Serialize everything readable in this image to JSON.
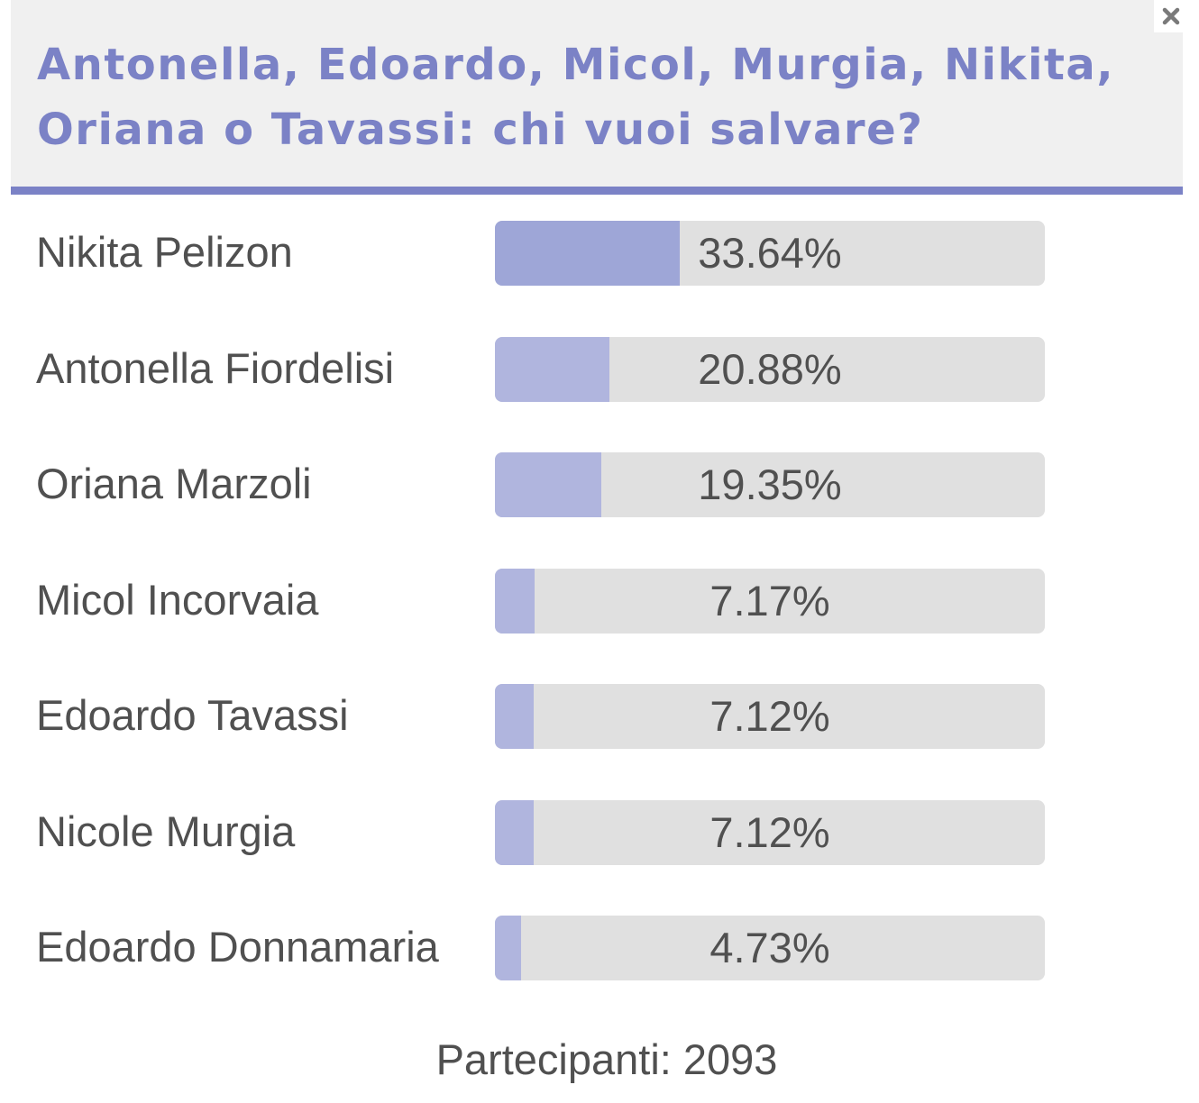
{
  "poll": {
    "title": "Antonella, Edoardo, Micol, Murgia, Nikita, Oriana o Tavassi: chi vuoi salvare?",
    "close_icon": "close-icon",
    "accent_color": "#7b82c6",
    "bar_color": "#b0b5de",
    "top_bar_color": "#9ea6d7",
    "track_color": "#e0e0e0",
    "options": [
      {
        "name": "Nikita Pelizon",
        "percent_label": "33.64%",
        "value": 33.64
      },
      {
        "name": "Antonella Fiordelisi",
        "percent_label": "20.88%",
        "value": 20.88
      },
      {
        "name": "Oriana Marzoli",
        "percent_label": "19.35%",
        "value": 19.35
      },
      {
        "name": "Micol Incorvaia",
        "percent_label": "7.17%",
        "value": 7.17
      },
      {
        "name": "Edoardo Tavassi",
        "percent_label": "7.12%",
        "value": 7.12
      },
      {
        "name": "Nicole Murgia",
        "percent_label": "7.12%",
        "value": 7.12
      },
      {
        "name": "Edoardo Donnamaria",
        "percent_label": "4.73%",
        "value": 4.73
      }
    ],
    "participants_label": "Partecipanti: 2093"
  }
}
